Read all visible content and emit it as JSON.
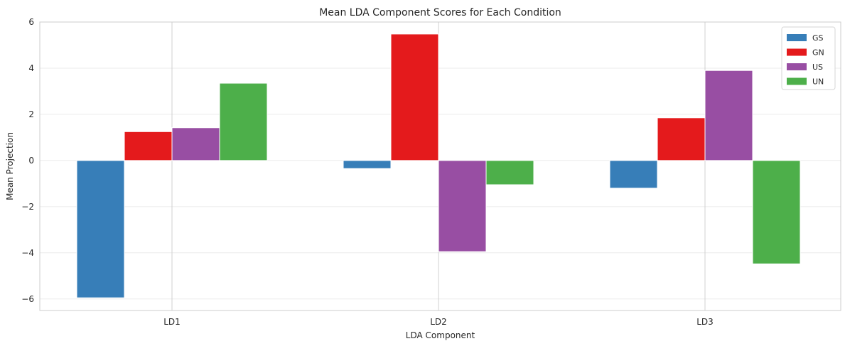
{
  "chart_data": {
    "type": "bar",
    "title": "Mean LDA Component Scores for Each Condition",
    "xlabel": "LDA Component",
    "ylabel": "Mean Projection",
    "categories": [
      "LD1",
      "LD2",
      "LD3"
    ],
    "ylim": [
      -6.5,
      6.0
    ],
    "yticks": [
      -6,
      -4,
      -2,
      0,
      2,
      4,
      6
    ],
    "ytick_labels": [
      "−6",
      "−4",
      "−2",
      "0",
      "2",
      "4",
      "6"
    ],
    "grid": true,
    "legend_position": "top-right",
    "series": [
      {
        "name": "GS",
        "color": "#377eb8",
        "values": [
          -5.95,
          -0.35,
          -1.2
        ]
      },
      {
        "name": "GN",
        "color": "#e41a1c",
        "values": [
          1.25,
          5.48,
          1.85
        ]
      },
      {
        "name": "US",
        "color": "#984ea3",
        "values": [
          1.42,
          -3.95,
          3.9
        ]
      },
      {
        "name": "UN",
        "color": "#4daf4a",
        "values": [
          3.35,
          -1.05,
          -4.48
        ]
      }
    ]
  }
}
